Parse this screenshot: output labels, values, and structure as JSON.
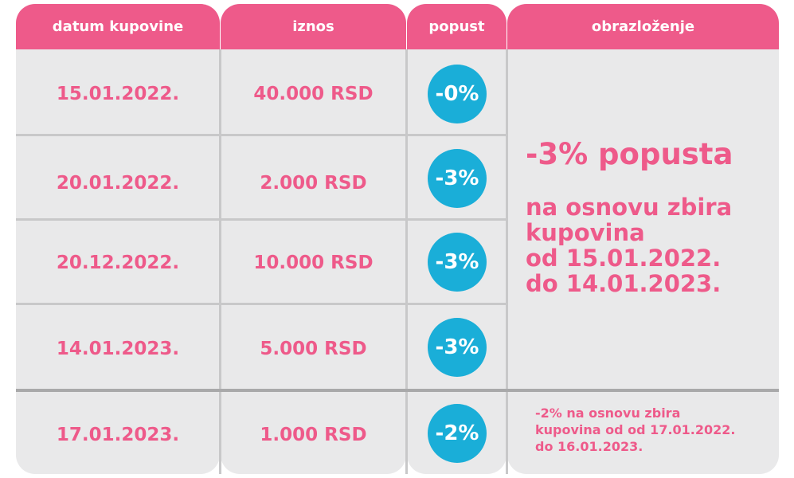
{
  "headers": {
    "date": "datum kupovine",
    "amount": "iznos",
    "discount": "popust",
    "explanation": "obrazloženje"
  },
  "rows": [
    {
      "date": "15.01.2022.",
      "amount": "40.000 RSD",
      "discount": "-0%"
    },
    {
      "date": "20.01.2022.",
      "amount": "2.000 RSD",
      "discount": "-3%"
    },
    {
      "date": "20.12.2022.",
      "amount": "10.000 RSD",
      "discount": "-3%"
    },
    {
      "date": "14.01.2023.",
      "amount": "5.000 RSD",
      "discount": "-3%"
    },
    {
      "date": "17.01.2023.",
      "amount": "1.000 RSD",
      "discount": "-2%"
    }
  ],
  "explanation": {
    "main_title": "-3% popusta",
    "main_text": "na osnovu zbira\nkupovina\nod 15.01.2022.\ndo 14.01.2023.",
    "last_text": "-2% na osnovu zbira\nkupovina od od 17.01.2022.\ndo 16.01.2023."
  },
  "colors": {
    "pink": "#ee5a8a",
    "blue": "#1aaed8",
    "cell_bg": "#e9e9ea",
    "divider": "#c8c8c9"
  }
}
